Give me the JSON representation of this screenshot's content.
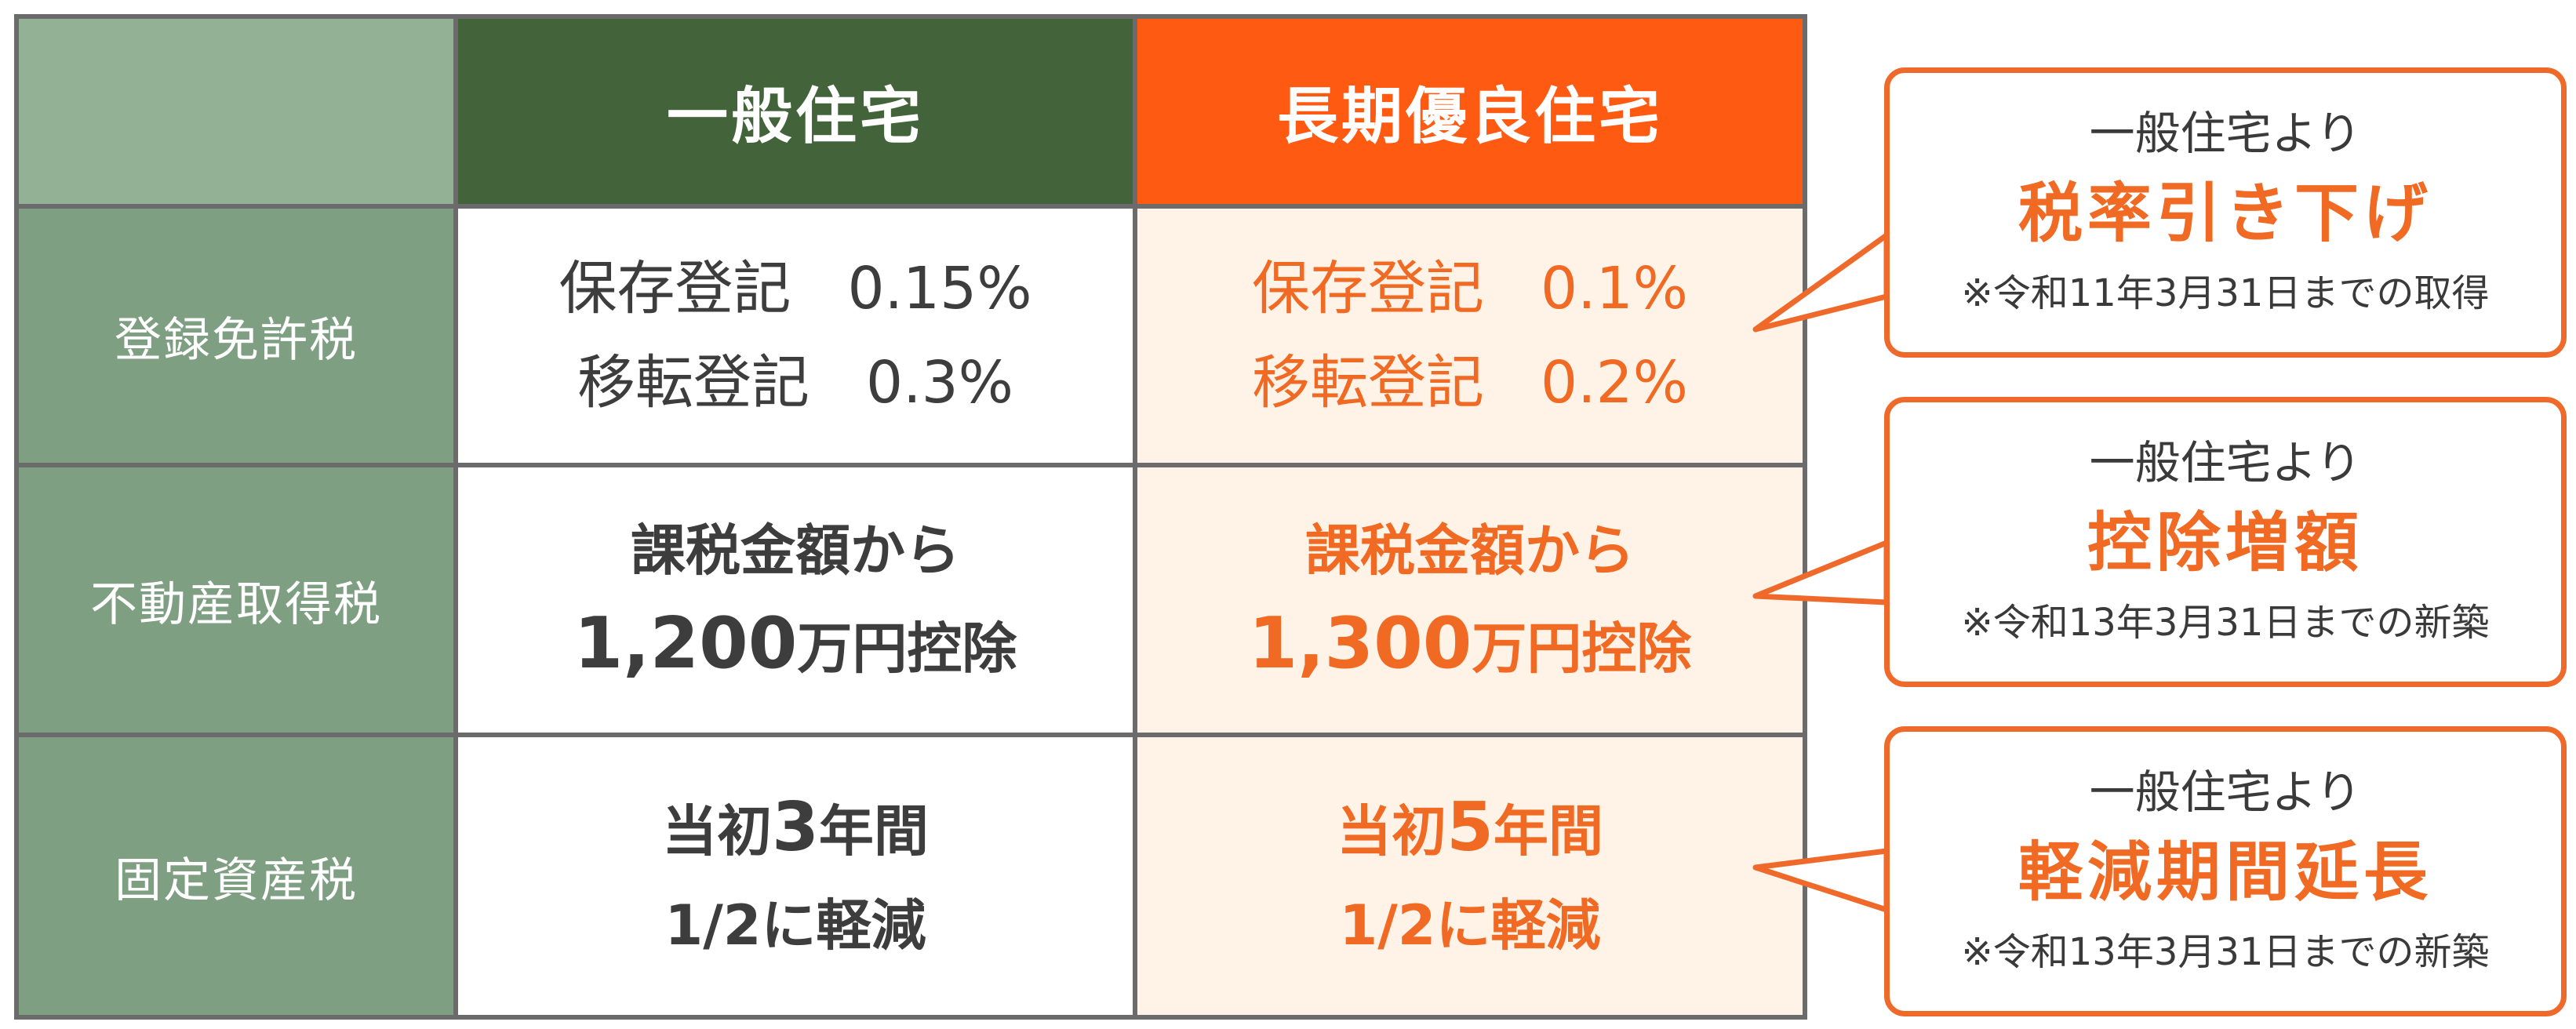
{
  "table": {
    "headers": {
      "corner": "",
      "normal": "一般住宅",
      "long": "長期優良住宅"
    },
    "rows": [
      {
        "label": "登録免許税",
        "normal": {
          "line1_name": "保存登記",
          "line1_value": "0.15%",
          "line2_name": "移転登記",
          "line2_value": "0.3%"
        },
        "long": {
          "line1_name": "保存登記",
          "line1_value": "0.1%",
          "line2_name": "移転登記",
          "line2_value": "0.2%"
        }
      },
      {
        "label": "不動産取得税",
        "normal": {
          "line1": "課税金額から",
          "line2_number": "1,200",
          "line2_suffix": "万円控除"
        },
        "long": {
          "line1": "課税金額から",
          "line2_number": "1,300",
          "line2_suffix": "万円控除"
        }
      },
      {
        "label": "固定資産税",
        "normal": {
          "line1_prefix": "当初",
          "line1_number": "3",
          "line1_suffix": "年間",
          "line2": "1/2に軽減"
        },
        "long": {
          "line1_prefix": "当初",
          "line1_number": "5",
          "line1_suffix": "年間",
          "line2": "1/2に軽減"
        }
      }
    ]
  },
  "callouts": [
    {
      "sub": "一般住宅より",
      "main": "税率引き下げ",
      "note": "※令和11年3月31日までの取得"
    },
    {
      "sub": "一般住宅より",
      "main": "控除増額",
      "note": "※令和13年3月31日までの新築"
    },
    {
      "sub": "一般住宅より",
      "main": "軽減期間延長",
      "note": "※令和13年3月31日までの新築"
    }
  ],
  "colors": {
    "header_normal": "#43643b",
    "header_long": "#ff5a12",
    "row_label": "#7f9f83",
    "long_cell_bg": "#fff2e7",
    "accent": "#f06a24"
  }
}
